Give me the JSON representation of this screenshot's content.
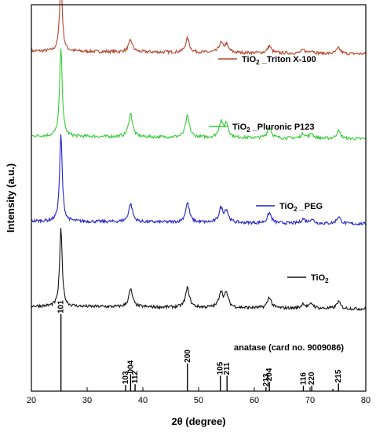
{
  "chart_data": {
    "type": "line",
    "xlabel_main": "2",
    "xlabel_theta": "θ",
    "xlabel_rest": " (degree)",
    "ylabel": "Intensity (a.u.)",
    "xlim": [
      20,
      80
    ],
    "x_ticks": [
      20,
      30,
      40,
      50,
      60,
      70,
      80
    ],
    "grid": false,
    "legend_placement": "inline-right",
    "series": [
      {
        "name": "TiO2 _Triton X-100",
        "name_base": "TiO",
        "name_sub": "2",
        "name_rest": " _Triton X-100",
        "color": "#b5442a",
        "baseline": 0.88,
        "peaks": [
          [
            25.3,
            0.19
          ],
          [
            37.8,
            0.03
          ],
          [
            48.0,
            0.036
          ],
          [
            54.0,
            0.024
          ],
          [
            55.0,
            0.02
          ],
          [
            62.7,
            0.018
          ],
          [
            68.8,
            0.008
          ],
          [
            70.3,
            0.008
          ],
          [
            75.1,
            0.014
          ]
        ]
      },
      {
        "name": "TiO2 _Pluronic P123",
        "name_base": "TiO",
        "name_sub": "2",
        "name_rest": " _Pluronic P123",
        "color": "#33cc33",
        "baseline": 0.66,
        "peaks": [
          [
            25.3,
            0.23
          ],
          [
            37.8,
            0.06
          ],
          [
            48.0,
            0.055
          ],
          [
            54.0,
            0.04
          ],
          [
            55.0,
            0.035
          ],
          [
            62.7,
            0.03
          ],
          [
            68.8,
            0.012
          ],
          [
            70.3,
            0.012
          ],
          [
            75.1,
            0.02
          ]
        ]
      },
      {
        "name": "TiO2 _PEG",
        "name_base": "TiO",
        "name_sub": "2",
        "name_rest": " _PEG",
        "color": "#2222cc",
        "baseline": 0.44,
        "peaks": [
          [
            25.3,
            0.225
          ],
          [
            37.8,
            0.047
          ],
          [
            48.0,
            0.05
          ],
          [
            54.0,
            0.036
          ],
          [
            55.0,
            0.03
          ],
          [
            62.7,
            0.026
          ],
          [
            68.8,
            0.011
          ],
          [
            70.3,
            0.011
          ],
          [
            75.1,
            0.018
          ]
        ]
      },
      {
        "name": "TiO2",
        "name_base": "TiO",
        "name_sub": "2",
        "name_rest": "",
        "color": "#111111",
        "baseline": 0.22,
        "peaks": [
          [
            25.3,
            0.2
          ],
          [
            37.8,
            0.045
          ],
          [
            48.0,
            0.05
          ],
          [
            54.0,
            0.04
          ],
          [
            55.0,
            0.034
          ],
          [
            62.7,
            0.028
          ],
          [
            68.8,
            0.012
          ],
          [
            70.3,
            0.012
          ],
          [
            75.1,
            0.018
          ]
        ]
      }
    ],
    "reference": {
      "title": "anatase (card no. 9009086)",
      "lines": [
        {
          "x": 25.3,
          "h": 1.0,
          "label": "101"
        },
        {
          "x": 36.9,
          "h": 0.08,
          "label": "103"
        },
        {
          "x": 37.8,
          "h": 0.22,
          "label": "004"
        },
        {
          "x": 38.6,
          "h": 0.09,
          "label": "112"
        },
        {
          "x": 48.0,
          "h": 0.36,
          "label": "200"
        },
        {
          "x": 53.9,
          "h": 0.2,
          "label": "105"
        },
        {
          "x": 55.1,
          "h": 0.2,
          "label": "211"
        },
        {
          "x": 62.1,
          "h": 0.05,
          "label": "213"
        },
        {
          "x": 62.7,
          "h": 0.12,
          "label": "204"
        },
        {
          "x": 68.8,
          "h": 0.07,
          "label": "116"
        },
        {
          "x": 70.3,
          "h": 0.07,
          "label": "220"
        },
        {
          "x": 74.1,
          "h": 0.03,
          "label": ""
        },
        {
          "x": 75.1,
          "h": 0.1,
          "label": "215"
        }
      ]
    }
  }
}
